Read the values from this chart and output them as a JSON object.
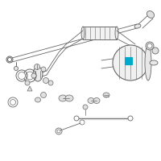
{
  "bg_color": "#ffffff",
  "line_color": "#666666",
  "highlight_color": "#00aacc",
  "lw": 0.7,
  "figsize": [
    2.0,
    2.0
  ],
  "dpi": 100
}
